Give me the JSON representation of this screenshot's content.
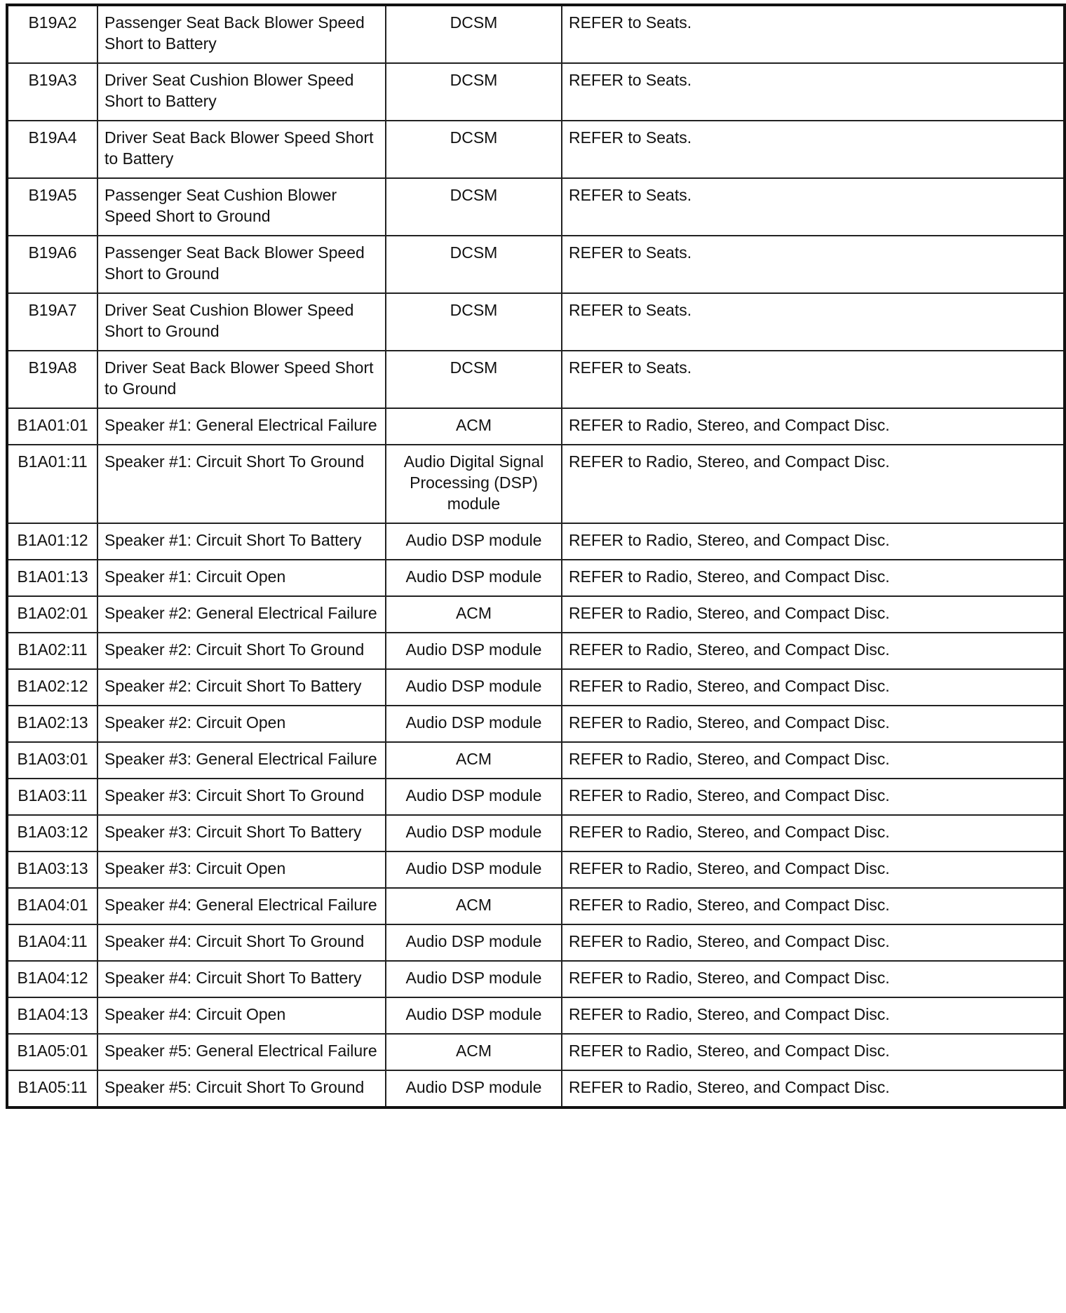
{
  "rows": [
    {
      "code": "B19A2",
      "description": "Passenger Seat Back Blower Speed Short to Battery",
      "module": "DCSM",
      "action": "REFER to Seats."
    },
    {
      "code": "B19A3",
      "description": "Driver Seat Cushion Blower Speed Short to Battery",
      "module": "DCSM",
      "action": "REFER to Seats."
    },
    {
      "code": "B19A4",
      "description": "Driver Seat Back Blower Speed Short to Battery",
      "module": "DCSM",
      "action": "REFER to Seats."
    },
    {
      "code": "B19A5",
      "description": "Passenger Seat Cushion Blower Speed Short to Ground",
      "module": "DCSM",
      "action": "REFER to Seats."
    },
    {
      "code": "B19A6",
      "description": "Passenger Seat Back Blower Speed Short to Ground",
      "module": "DCSM",
      "action": "REFER to Seats."
    },
    {
      "code": "B19A7",
      "description": "Driver Seat Cushion Blower Speed Short to Ground",
      "module": "DCSM",
      "action": "REFER to Seats."
    },
    {
      "code": "B19A8",
      "description": "Driver Seat Back Blower Speed Short to Ground",
      "module": "DCSM",
      "action": "REFER to Seats."
    },
    {
      "code": "B1A01:01",
      "description": "Speaker #1: General Electrical Failure",
      "module": "ACM",
      "action": "REFER to Radio, Stereo, and Compact Disc."
    },
    {
      "code": "B1A01:11",
      "description": "Speaker #1: Circuit Short To Ground",
      "module": "Audio Digital Signal Processing (DSP) module",
      "action": "REFER to Radio, Stereo, and Compact Disc."
    },
    {
      "code": "B1A01:12",
      "description": "Speaker #1: Circuit Short To Battery",
      "module": "Audio DSP module",
      "action": "REFER to Radio, Stereo, and Compact Disc."
    },
    {
      "code": "B1A01:13",
      "description": "Speaker #1: Circuit Open",
      "module": "Audio DSP module",
      "action": "REFER to Radio, Stereo, and Compact Disc."
    },
    {
      "code": "B1A02:01",
      "description": "Speaker #2: General Electrical Failure",
      "module": "ACM",
      "action": "REFER to Radio, Stereo, and Compact Disc."
    },
    {
      "code": "B1A02:11",
      "description": "Speaker #2: Circuit Short To Ground",
      "module": "Audio DSP module",
      "action": "REFER to Radio, Stereo, and Compact Disc."
    },
    {
      "code": "B1A02:12",
      "description": "Speaker #2: Circuit Short To Battery",
      "module": "Audio DSP module",
      "action": "REFER to Radio, Stereo, and Compact Disc."
    },
    {
      "code": "B1A02:13",
      "description": "Speaker #2: Circuit Open",
      "module": "Audio DSP module",
      "action": "REFER to Radio, Stereo, and Compact Disc."
    },
    {
      "code": "B1A03:01",
      "description": "Speaker #3: General Electrical Failure",
      "module": "ACM",
      "action": "REFER to Radio, Stereo, and Compact Disc."
    },
    {
      "code": "B1A03:11",
      "description": "Speaker #3: Circuit Short To Ground",
      "module": "Audio DSP module",
      "action": "REFER to Radio, Stereo, and Compact Disc."
    },
    {
      "code": "B1A03:12",
      "description": "Speaker #3: Circuit Short To Battery",
      "module": "Audio DSP module",
      "action": "REFER to Radio, Stereo, and Compact Disc."
    },
    {
      "code": "B1A03:13",
      "description": "Speaker #3: Circuit Open",
      "module": "Audio DSP module",
      "action": "REFER to Radio, Stereo, and Compact Disc."
    },
    {
      "code": "B1A04:01",
      "description": "Speaker #4: General Electrical Failure",
      "module": "ACM",
      "action": "REFER to Radio, Stereo, and Compact Disc."
    },
    {
      "code": "B1A04:11",
      "description": "Speaker #4: Circuit Short To Ground",
      "module": "Audio DSP module",
      "action": "REFER to Radio, Stereo, and Compact Disc."
    },
    {
      "code": "B1A04:12",
      "description": "Speaker #4: Circuit Short To Battery",
      "module": "Audio DSP module",
      "action": "REFER to Radio, Stereo, and Compact Disc."
    },
    {
      "code": "B1A04:13",
      "description": "Speaker #4: Circuit Open",
      "module": "Audio DSP module",
      "action": "REFER to Radio, Stereo, and Compact Disc."
    },
    {
      "code": "B1A05:01",
      "description": "Speaker #5: General Electrical Failure",
      "module": "ACM",
      "action": "REFER to Radio, Stereo, and Compact Disc."
    },
    {
      "code": "B1A05:11",
      "description": "Speaker #5: Circuit Short To Ground",
      "module": "Audio DSP module",
      "action": "REFER to Radio, Stereo, and Compact Disc."
    }
  ]
}
